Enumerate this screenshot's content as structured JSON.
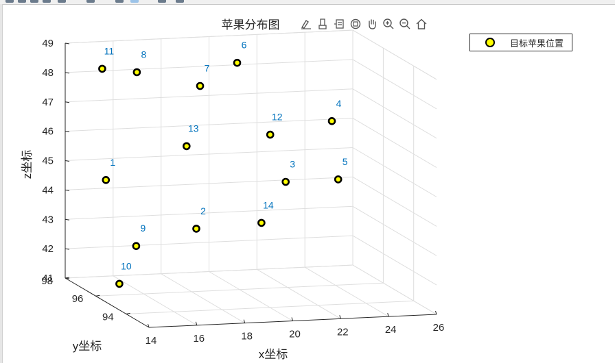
{
  "chart_data": {
    "type": "scatter3d",
    "title": "苹果分布图",
    "xlabel": "x坐标",
    "ylabel": "y坐标",
    "zlabel": "z坐标",
    "xlim": [
      14,
      26
    ],
    "ylim": [
      92.5,
      98
    ],
    "zlim": [
      41,
      49
    ],
    "xticks": [
      14,
      16,
      18,
      20,
      22,
      24,
      26
    ],
    "yticks": [
      94,
      96,
      98
    ],
    "zticks": [
      41,
      42,
      43,
      44,
      45,
      46,
      47,
      48,
      49
    ],
    "grid": true,
    "legend": {
      "placement": "top-right-outside",
      "entries": [
        "目标苹果位置"
      ]
    },
    "marker": {
      "shape": "circle",
      "fill": "#ffff00",
      "edge": "#000000"
    },
    "label_color": "#0072bd",
    "points": [
      {
        "label": "1",
        "x": 14.3,
        "y": 95.8,
        "z": 45.0
      },
      {
        "label": "2",
        "x": 17.5,
        "y": 94.9,
        "z": 43.5
      },
      {
        "label": "3",
        "x": 22.5,
        "y": 96.9,
        "z": 44.3
      },
      {
        "label": "4",
        "x": 25.0,
        "y": 97.8,
        "z": 46.0
      },
      {
        "label": "5",
        "x": 24.5,
        "y": 96.6,
        "z": 44.4
      },
      {
        "label": "6",
        "x": 21.3,
        "y": 98.2,
        "z": 48.0
      },
      {
        "label": "7",
        "x": 19.5,
        "y": 97.8,
        "z": 47.4
      },
      {
        "label": "8",
        "x": 16.8,
        "y": 97.7,
        "z": 48.0
      },
      {
        "label": "9",
        "x": 14.8,
        "y": 94.6,
        "z": 43.1
      },
      {
        "label": "10",
        "x": 13.4,
        "y": 93.5,
        "z": 42.2
      },
      {
        "label": "11",
        "x": 15.1,
        "y": 97.3,
        "z": 48.3
      },
      {
        "label": "12",
        "x": 22.3,
        "y": 97.6,
        "z": 45.7
      },
      {
        "label": "13",
        "x": 18.3,
        "y": 96.8,
        "z": 45.7
      },
      {
        "label": "14",
        "x": 20.6,
        "y": 95.5,
        "z": 43.4
      }
    ]
  },
  "axes_toolbar": {
    "icons": [
      "brush-icon",
      "data-tips-icon",
      "insert-legend-icon",
      "rotate-3d-icon",
      "pan-icon",
      "zoom-in-icon",
      "zoom-out-icon",
      "home-icon"
    ]
  }
}
